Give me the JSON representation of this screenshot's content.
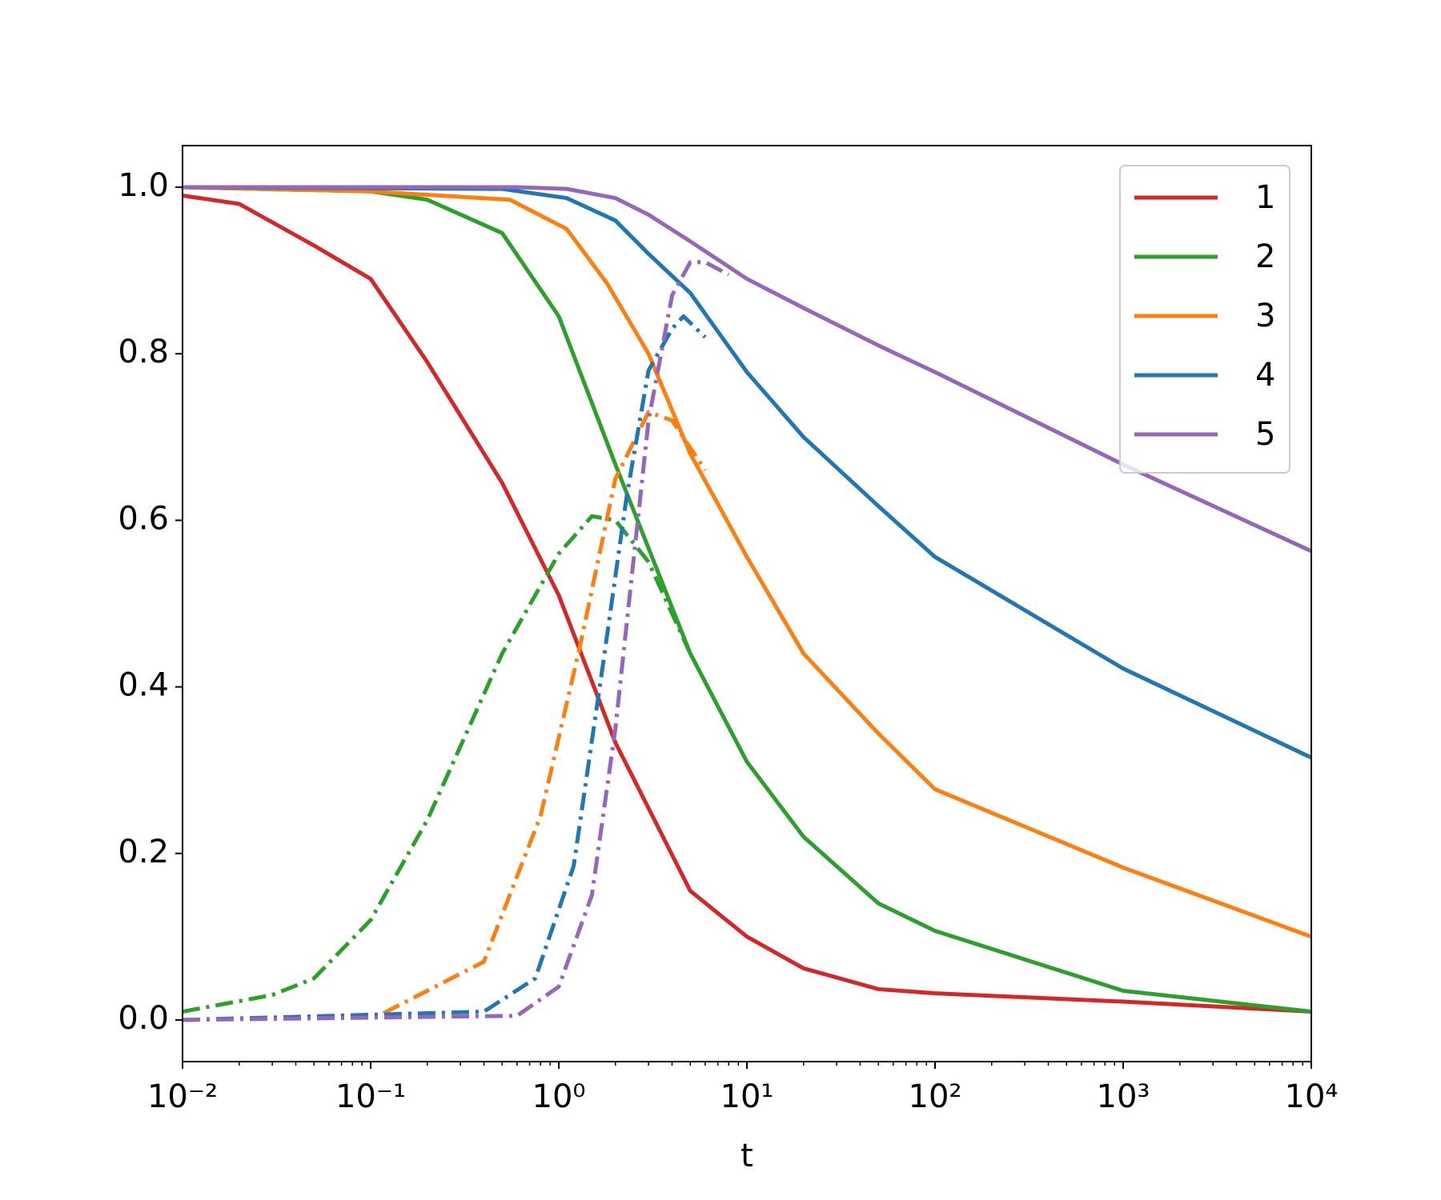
{
  "chart_data": {
    "type": "line",
    "xlabel": "t",
    "xscale": "log",
    "xlim": [
      0.01,
      10000
    ],
    "xticks": [
      {
        "value": 0.01,
        "label": "10⁻²"
      },
      {
        "value": 0.1,
        "label": "10⁻¹"
      },
      {
        "value": 1,
        "label": "10⁰"
      },
      {
        "value": 10,
        "label": "10¹"
      },
      {
        "value": 100,
        "label": "10²"
      },
      {
        "value": 1000,
        "label": "10³"
      },
      {
        "value": 10000,
        "label": "10⁴"
      }
    ],
    "ylim": [
      -0.05,
      1.05
    ],
    "yticks": [
      {
        "value": 0,
        "label": "0.0"
      },
      0.2,
      0.4,
      0.6,
      0.8,
      {
        "value": 1,
        "label": "1.0"
      }
    ],
    "legend": "upper right",
    "series": [
      {
        "name": "1",
        "color": "#d62728",
        "x": [
          0.01,
          0.02,
          0.05,
          0.1,
          0.2,
          0.5,
          1,
          2,
          5,
          10,
          20,
          50,
          100,
          1000,
          10000
        ],
        "values": [
          0.99,
          0.98,
          0.93,
          0.89,
          0.79,
          0.645,
          0.51,
          0.333,
          0.155,
          0.1,
          0.062,
          0.037,
          0.032,
          0.022,
          0.01
        ]
      },
      {
        "name": "2",
        "color": "#2ca02c",
        "x": [
          0.01,
          0.1,
          0.2,
          0.5,
          1,
          2,
          5,
          10,
          20,
          50,
          100,
          1000,
          10000
        ],
        "values": [
          1.0,
          0.995,
          0.985,
          0.945,
          0.845,
          0.667,
          0.44,
          0.31,
          0.22,
          0.14,
          0.107,
          0.035,
          0.01
        ]
      },
      {
        "name": "3",
        "color": "#ff7f0e",
        "x": [
          0.01,
          0.1,
          0.55,
          1.1,
          1.8,
          3,
          5,
          10,
          20,
          50,
          100,
          1000,
          10000
        ],
        "values": [
          1.0,
          0.995,
          0.985,
          0.95,
          0.885,
          0.8,
          0.68,
          0.556,
          0.44,
          0.344,
          0.277,
          0.183,
          0.1
        ]
      },
      {
        "name": "4",
        "color": "#1f77b4",
        "x": [
          0.01,
          0.5,
          1.1,
          2,
          3,
          5,
          10,
          20,
          50,
          100,
          1000,
          10000
        ],
        "values": [
          1.0,
          0.998,
          0.987,
          0.96,
          0.92,
          0.873,
          0.778,
          0.7,
          0.617,
          0.556,
          0.422,
          0.315
        ]
      },
      {
        "name": "5",
        "color": "#9467bd",
        "x": [
          0.01,
          0.6,
          1.1,
          2,
          3,
          5,
          10,
          20,
          50,
          100,
          1000,
          10000
        ],
        "values": [
          1.0,
          1.0,
          0.998,
          0.987,
          0.967,
          0.935,
          0.89,
          0.855,
          0.81,
          0.778,
          0.667,
          0.563
        ]
      },
      {
        "color": "#2ca02c",
        "style": "dashdot",
        "x": [
          0.01,
          0.03,
          0.05,
          0.1,
          0.2,
          0.5,
          1,
          1.5,
          2,
          3,
          5
        ],
        "values": [
          0.01,
          0.03,
          0.05,
          0.12,
          0.24,
          0.44,
          0.56,
          0.605,
          0.6,
          0.55,
          0.44
        ]
      },
      {
        "color": "#ff7f0e",
        "style": "dashdot",
        "x": [
          0.01,
          0.11,
          0.4,
          0.8,
          1.3,
          2,
          3,
          4,
          6
        ],
        "values": [
          0.0,
          0.005,
          0.07,
          0.245,
          0.45,
          0.65,
          0.73,
          0.72,
          0.66
        ]
      },
      {
        "color": "#1f77b4",
        "style": "dashdot",
        "x": [
          0.01,
          0.4,
          0.75,
          1.2,
          1.7,
          2.3,
          3,
          4,
          4.6,
          6
        ],
        "values": [
          0.0,
          0.01,
          0.05,
          0.185,
          0.42,
          0.63,
          0.78,
          0.83,
          0.845,
          0.82
        ]
      },
      {
        "color": "#9467bd",
        "style": "dashdot",
        "x": [
          0.01,
          0.6,
          1,
          1.5,
          2,
          3,
          4,
          5,
          6,
          8
        ],
        "values": [
          0.0,
          0.005,
          0.04,
          0.15,
          0.35,
          0.72,
          0.87,
          0.91,
          0.91,
          0.895
        ]
      }
    ]
  }
}
